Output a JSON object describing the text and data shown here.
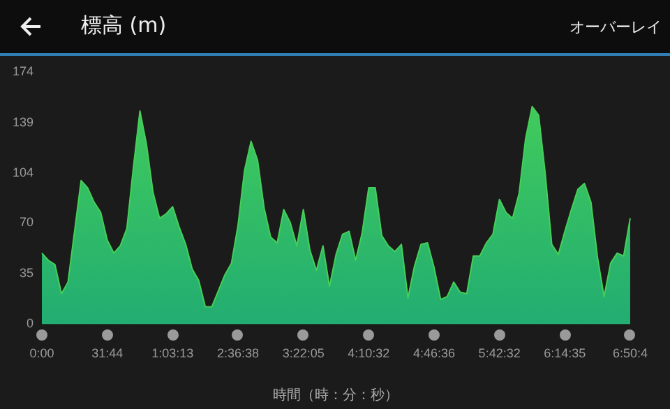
{
  "chart_data": {
    "type": "area",
    "title": "標高 (m)",
    "xlabel": "時間（時：分：秒）",
    "annotations": [
      "オーバーレイ"
    ],
    "categories": [
      "0:00",
      null,
      null,
      null,
      null,
      null,
      null,
      null,
      null,
      null,
      "31:44",
      null,
      null,
      null,
      null,
      null,
      null,
      null,
      null,
      null,
      "1:03:13",
      null,
      null,
      null,
      null,
      null,
      null,
      null,
      null,
      null,
      "2:36:38",
      null,
      null,
      null,
      null,
      null,
      null,
      null,
      null,
      null,
      "3:22:05",
      null,
      null,
      null,
      null,
      null,
      null,
      null,
      null,
      null,
      "4:10:32",
      null,
      null,
      null,
      null,
      null,
      null,
      null,
      null,
      null,
      "4:46:36",
      null,
      null,
      null,
      null,
      null,
      null,
      null,
      null,
      null,
      "5:42:32",
      null,
      null,
      null,
      null,
      null,
      null,
      null,
      null,
      null,
      "6:14:35",
      null,
      null,
      null,
      null,
      null,
      null,
      null,
      null,
      null,
      "6:50:4"
    ],
    "ylim": [
      0,
      174
    ],
    "yticks": [
      0,
      35,
      70,
      104,
      139,
      174
    ],
    "grid": false,
    "legend": false,
    "series": [
      {
        "color": "#45cf58",
        "values": [
          49,
          44,
          41,
          21,
          29,
          64,
          99,
          94,
          84,
          77,
          58,
          49,
          54,
          66,
          108,
          147,
          124,
          91,
          73,
          76,
          81,
          67,
          55,
          38,
          30,
          12,
          12,
          23,
          34,
          42,
          68,
          106,
          126,
          113,
          80,
          60,
          56,
          79,
          70,
          54,
          79,
          51,
          37,
          54,
          26,
          48,
          62,
          64,
          44,
          63,
          94,
          94,
          61,
          54,
          50,
          55,
          18,
          40,
          55,
          56,
          39,
          17,
          19,
          29,
          22,
          21,
          47,
          47,
          56,
          62,
          86,
          77,
          73,
          90,
          128,
          150,
          144,
          104,
          55,
          48,
          64,
          79,
          93,
          97,
          84,
          46,
          19,
          42,
          49,
          47,
          73
        ]
      }
    ]
  }
}
